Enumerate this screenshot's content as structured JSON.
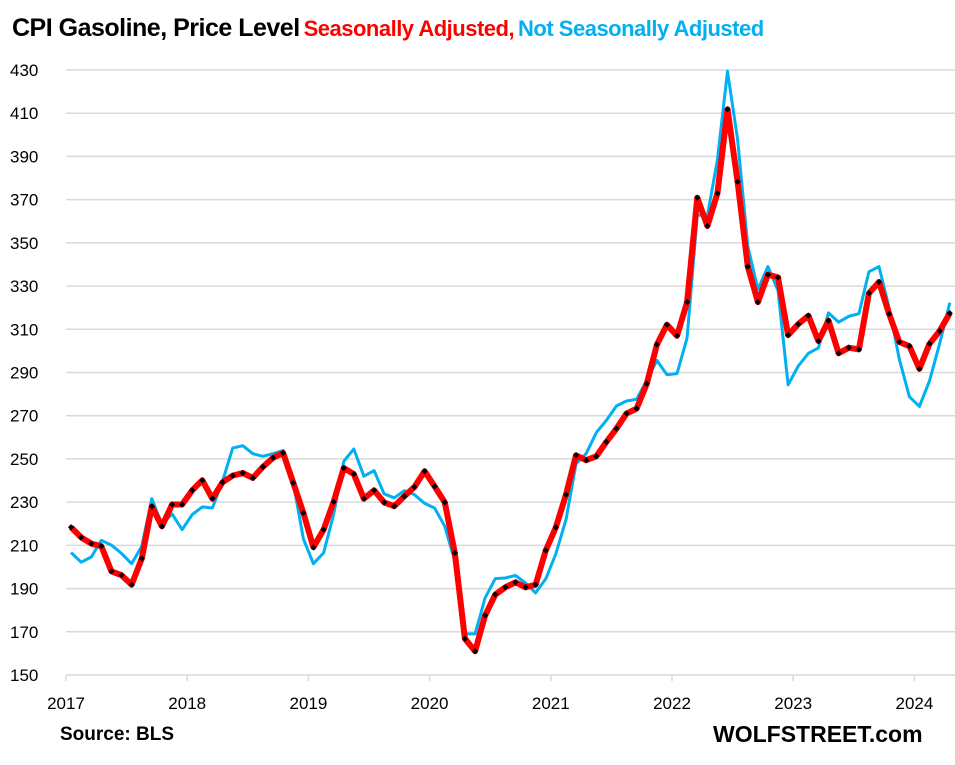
{
  "chart_data": {
    "type": "line",
    "title": "CPI Gasoline, Price Level",
    "title_parts": [
      {
        "text": "CPI Gasoline, Price Level",
        "role": "main"
      },
      {
        "text": "Seasonally Adjusted,",
        "role": "series-1"
      },
      {
        "text": "Not Seasonally Adjusted",
        "role": "series-2"
      }
    ],
    "xlabel": "",
    "ylabel": "",
    "ylim": [
      150,
      430
    ],
    "yticks": [
      150,
      170,
      190,
      210,
      230,
      250,
      270,
      290,
      310,
      330,
      350,
      370,
      390,
      410,
      430
    ],
    "xticks": [
      "2017",
      "2018",
      "2019",
      "2020",
      "2021",
      "2022",
      "2023",
      "2024"
    ],
    "x_start": "2017-01",
    "x_end": "2024-04",
    "x_frequency": "monthly",
    "grid": true,
    "series": [
      {
        "name": "Seasonally Adjusted",
        "color": "#ff0000",
        "marker_color": "#000000",
        "values": [
          218.4,
          213.7,
          210.8,
          209.6,
          198.0,
          196.2,
          191.8,
          203.9,
          228.0,
          218.8,
          228.9,
          228.9,
          235.5,
          240.1,
          231.6,
          239.2,
          242.3,
          243.5,
          241.2,
          246.3,
          250.5,
          252.8,
          238.9,
          225.0,
          209.1,
          217.3,
          230.1,
          245.8,
          243.0,
          231.6,
          235.5,
          229.9,
          228.1,
          232.7,
          237.0,
          244.3,
          237.3,
          229.9,
          206.5,
          166.8,
          161.0,
          177.6,
          187.2,
          190.6,
          192.9,
          190.6,
          191.8,
          207.7,
          218.3,
          233.5,
          251.7,
          249.4,
          251.2,
          257.9,
          264.0,
          271.0,
          273.3,
          284.8,
          302.9,
          312.1,
          307.0,
          322.6,
          370.9,
          357.8,
          372.9,
          411.8,
          378.3,
          339.0,
          322.6,
          335.3,
          334.0,
          307.3,
          312.4,
          316.3,
          304.6,
          314.0,
          298.9,
          301.5,
          300.7,
          326.7,
          331.9,
          317.1,
          304.1,
          302.2,
          291.7,
          303.3,
          309.2,
          317.5
        ]
      },
      {
        "name": "Not Seasonally Adjusted",
        "color": "#00b0f0",
        "values": [
          206.7,
          202.2,
          204.6,
          212.3,
          210.1,
          206.3,
          201.5,
          209.6,
          231.6,
          219.6,
          224.5,
          217.3,
          224.3,
          227.8,
          227.3,
          239.6,
          255.0,
          256.1,
          252.4,
          251.2,
          252.4,
          253.9,
          238.9,
          213.0,
          201.5,
          206.5,
          224.3,
          248.9,
          254.6,
          242.0,
          244.6,
          233.8,
          232.0,
          235.3,
          233.5,
          229.4,
          227.3,
          218.8,
          202.6,
          169.0,
          169.0,
          185.7,
          194.6,
          194.9,
          196.1,
          192.6,
          188.0,
          194.5,
          206.0,
          221.9,
          247.7,
          252.4,
          262.2,
          267.9,
          274.5,
          276.8,
          277.6,
          286.4,
          295.6,
          289.0,
          289.5,
          306.0,
          362.9,
          362.5,
          388.4,
          429.4,
          397.9,
          348.5,
          328.5,
          339.0,
          327.9,
          284.3,
          293.0,
          298.9,
          301.4,
          317.6,
          313.3,
          316.0,
          317.2,
          336.6,
          339.0,
          320.0,
          296.2,
          278.8,
          274.3,
          286.1,
          303.3,
          322.3
        ]
      }
    ],
    "annotations": [
      "Source: BLS",
      "WOLFSTREET.com"
    ]
  },
  "footer": {
    "source": "Source: BLS",
    "brand": "WOLFSTREET.com"
  }
}
